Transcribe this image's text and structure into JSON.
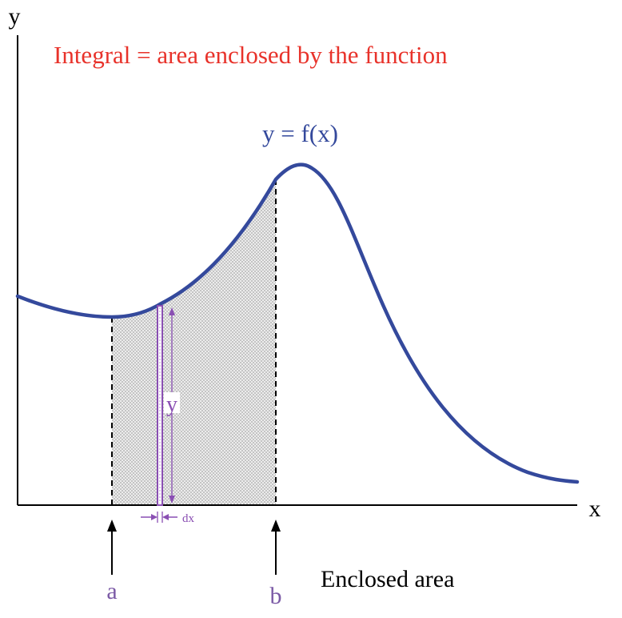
{
  "diagram": {
    "title": "Integral = area enclosed by the function",
    "axis_x_label": "x",
    "axis_y_label": "y",
    "curve_label": "y = f(x)",
    "strip_height_label": "y",
    "strip_width_label": "dx",
    "lower_limit_label": "a",
    "upper_limit_label": "b",
    "area_caption": "Enclosed area",
    "colors": {
      "title": "#e8322a",
      "curve": "#34499c",
      "limits": "#7b5aa6",
      "strip": "#8a4fb3",
      "axes": "#000000",
      "shading": "#cfcfcf"
    }
  }
}
